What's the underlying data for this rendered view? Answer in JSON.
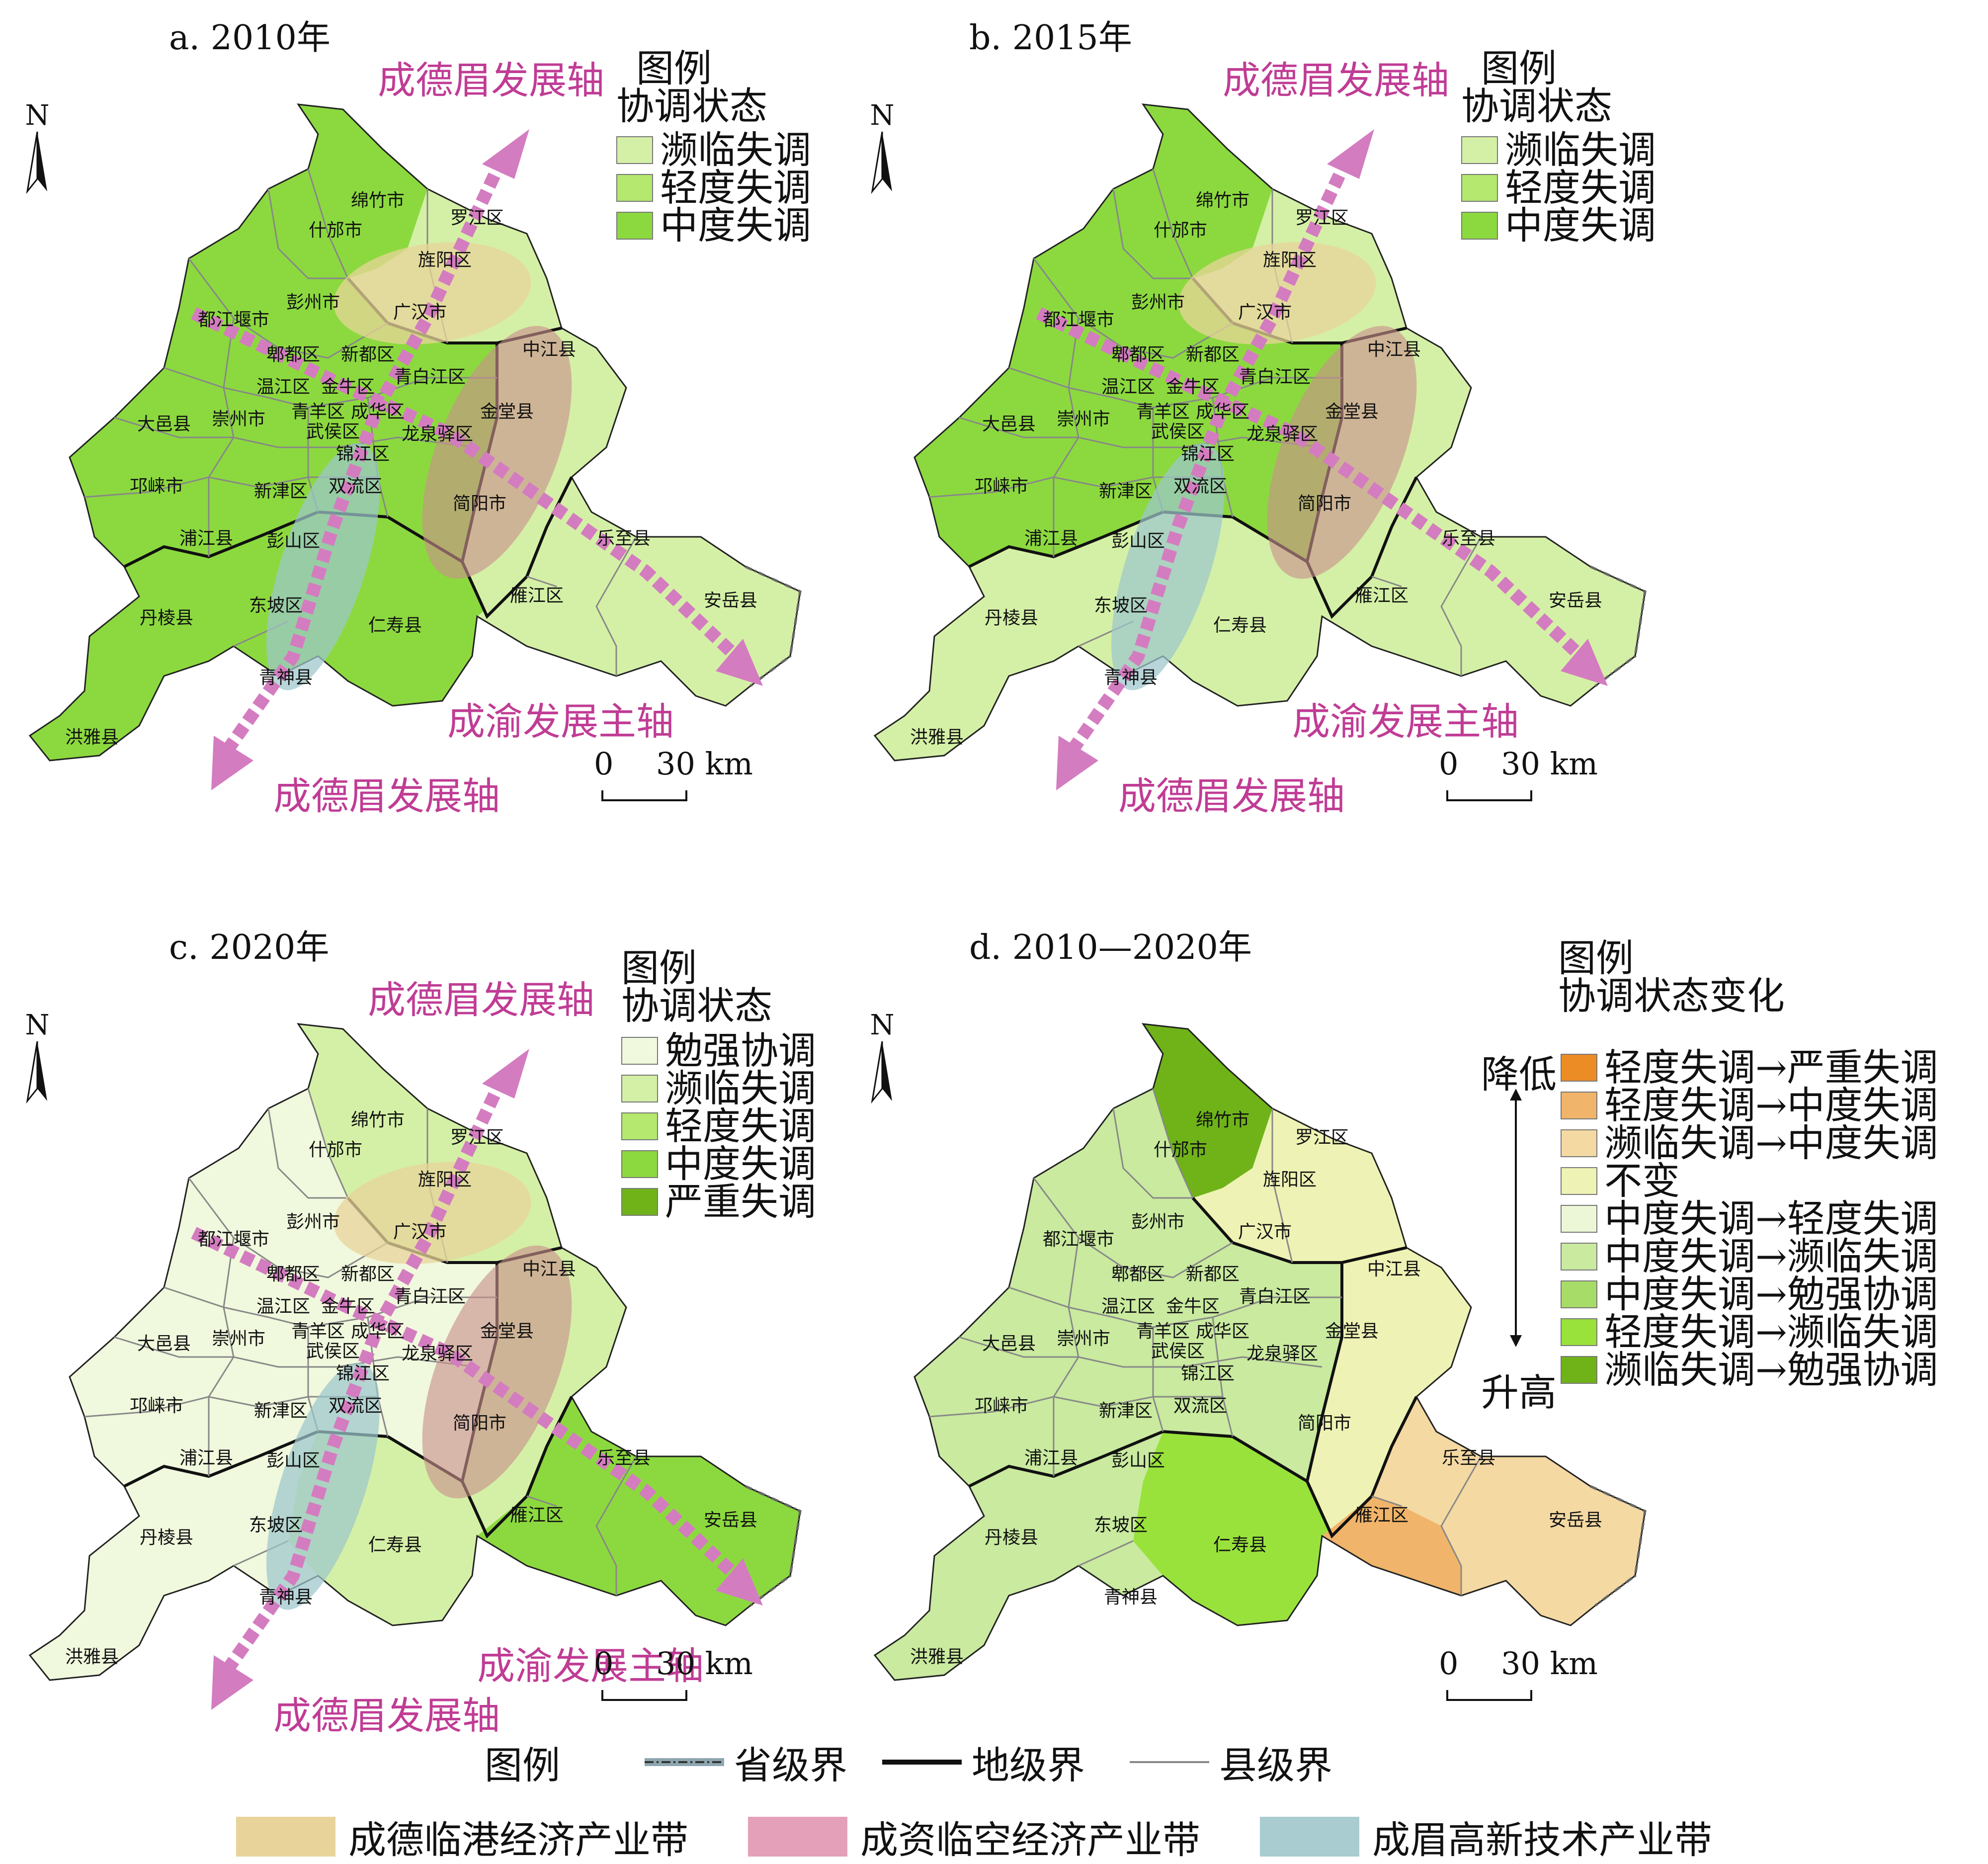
{
  "colors": {
    "near": "#d4f0a6",
    "light": "#b4e86e",
    "moderate": "#8cd93f",
    "severe": "#6fb319",
    "barely": "#f0f8dd",
    "unchanged": "#eef2b4",
    "up_severe": "#ec8c25",
    "up_moderate": "#f0b46a",
    "near_moderate": "#f4d9a3",
    "mod_light": "#ecf7d8",
    "mod_near": "#c9ea9f",
    "mod_barely": "#a8dc68",
    "light_near": "#99e23b",
    "near_barely": "#6fb319",
    "belt_port": "#e8d49a",
    "belt_air": "#e4a0b8",
    "belt_tech": "#a8ccd0",
    "axis": "#d47cc0"
  },
  "north_letter": "N",
  "scale": {
    "zero": "0",
    "dist": "30 km"
  },
  "axis_labels": {
    "cdm": "成德眉发展轴",
    "cy": "成渝发展主轴"
  },
  "places": {
    "mianzhu": "绵竹市",
    "shifang": "什邡市",
    "luojiang": "罗江区",
    "jingyang": "旌阳区",
    "pengzhou": "彭州市",
    "guanghan": "广汉市",
    "dujiangyan": "都江堰市",
    "zhongjiang": "中江县",
    "pidu": "郫都区",
    "xindu": "新都区",
    "qingbaijiang": "青白江区",
    "wenjiang": "温江区",
    "jinniu": "金牛区",
    "jintang": "金堂县",
    "dayi": "大邑县",
    "chongzhou": "崇州市",
    "qingyang": "青羊区",
    "chenghua": "成华区",
    "wuhou": "武侯区",
    "longquanyi": "龙泉驿区",
    "jinjiang": "锦江区",
    "qionglai": "邛崃市",
    "xinjin": "新津区",
    "shuangliu": "双流区",
    "jianyang": "简阳市",
    "pujiang": "浦江县",
    "pengshan": "彭山区",
    "lezhi": "乐至县",
    "dongpo": "东坡区",
    "yanjiang": "雁江区",
    "anyue": "安岳县",
    "danling": "丹棱县",
    "renshou": "仁寿县",
    "qingshen": "青神县",
    "hongya": "洪雅县"
  },
  "panels": {
    "a": {
      "title": "a. 2010年",
      "legend_title": "图例",
      "legend_sub": "协调状态",
      "legend": [
        "濒临失调",
        "轻度失调",
        "中度失调"
      ]
    },
    "b": {
      "title": "b. 2015年",
      "legend_title": "图例",
      "legend_sub": "协调状态",
      "legend": [
        "濒临失调",
        "轻度失调",
        "中度失调"
      ]
    },
    "c": {
      "title": "c. 2020年",
      "legend_title": "图例",
      "legend_sub": "协调状态",
      "legend": [
        "勉强协调",
        "濒临失调",
        "轻度失调",
        "中度失调",
        "严重失调"
      ]
    },
    "d": {
      "title": "d. 2010—2020年",
      "legend_title": "图例",
      "legend_sub": "协调状态变化",
      "decrease": "降低",
      "increase": "升高",
      "legend": [
        "轻度失调→严重失调",
        "轻度失调→中度失调",
        "濒临失调→中度失调",
        "不变",
        "中度失调→轻度失调",
        "中度失调→濒临失调",
        "中度失调→勉强协调",
        "轻度失调→濒临失调",
        "濒临失调→勉强协调"
      ]
    }
  },
  "bottom_legend": {
    "title": "图例",
    "province": "省级界",
    "prefecture": "地级界",
    "county": "县级界",
    "belts": [
      "成德临港经济产业带",
      "成资临空经济产业带",
      "成眉高新技术产业带"
    ]
  }
}
